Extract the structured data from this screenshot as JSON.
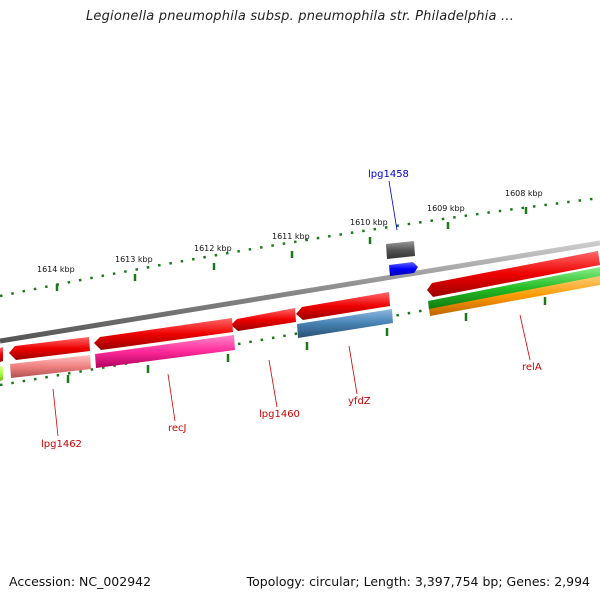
{
  "title": "Legionella pneumophila subsp. pneumophila str. Philadelphia ...",
  "footer": {
    "accession": "Accession: NC_002942",
    "summary": "Topology: circular; Length: 3,397,754 bp; Genes: 2,994"
  },
  "ruler_labels": [
    "1608 kbp",
    "1609 kbp",
    "1610 kbp",
    "1611 kbp",
    "1612 kbp",
    "1613 kbp",
    "1614 kbp"
  ],
  "gene_labels": [
    {
      "name": "lpg1458",
      "color": "#0000cc"
    },
    {
      "name": "relA",
      "color": "#cc0000"
    },
    {
      "name": "yfdZ",
      "color": "#cc0000"
    },
    {
      "name": "lpg1460",
      "color": "#cc0000"
    },
    {
      "name": "recJ",
      "color": "#cc0000"
    },
    {
      "name": "lpg1462",
      "color": "#cc0000"
    }
  ],
  "colors": {
    "backbone": "#888888",
    "ruler": "#1a7a1a",
    "feature_red": "#ee0000",
    "feature_pink": "#ff3399",
    "feature_salmon": "#f08080",
    "feature_steel": "#4682b4",
    "feature_green": "#33cc33",
    "feature_orange": "#ff9900",
    "feature_blue": "#0000ff",
    "feature_gray": "#555555",
    "feature_lime": "#aaff44"
  }
}
